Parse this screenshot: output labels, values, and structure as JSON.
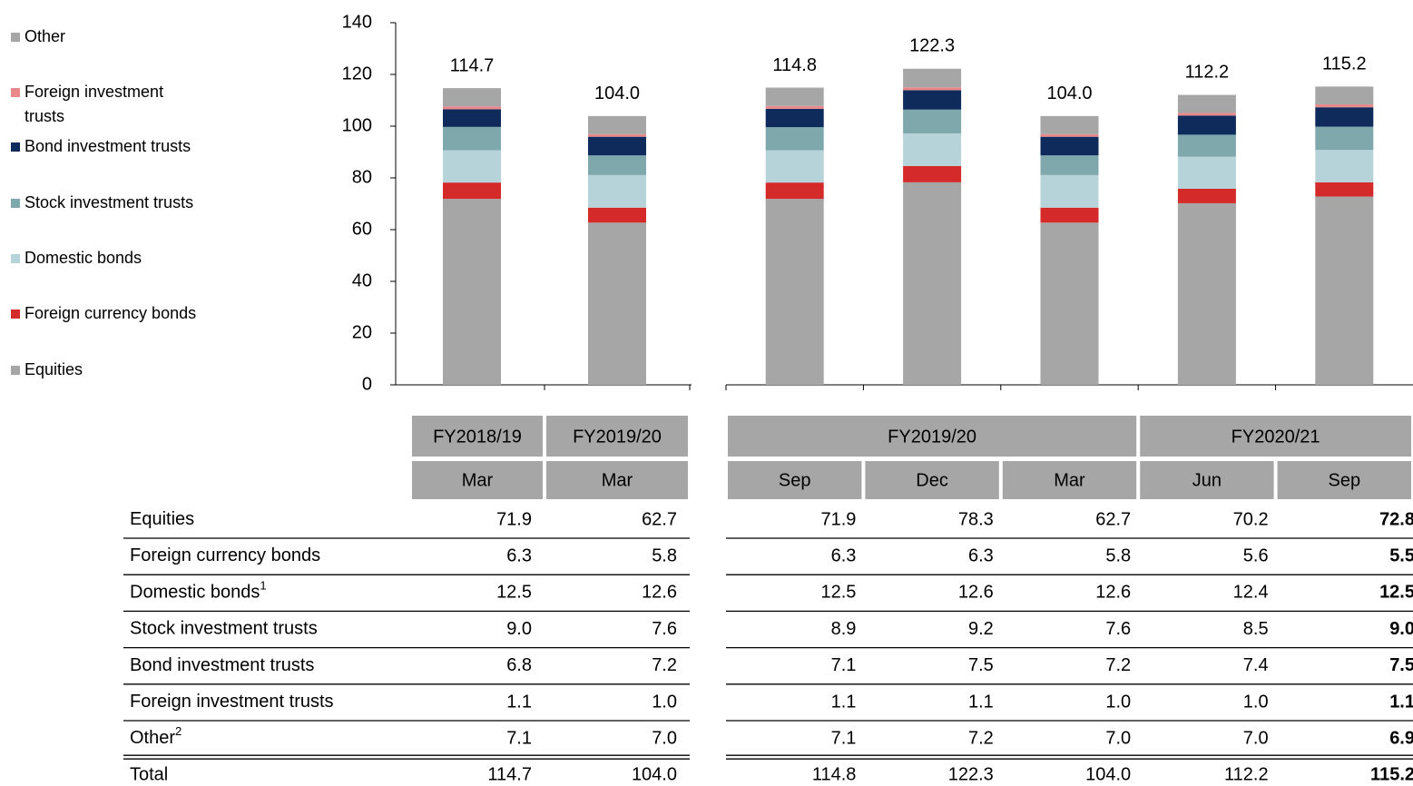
{
  "chart_data": {
    "type": "bar",
    "stacked": true,
    "categories": [
      "Mar",
      "Mar",
      "Sep",
      "Dec",
      "Mar",
      "Jun",
      "Sep"
    ],
    "groups": [
      {
        "label": "FY2018/19",
        "span": 1
      },
      {
        "label": "FY2019/20",
        "span": 1
      },
      {
        "label": "FY2019/20",
        "span": 3
      },
      {
        "label": "FY2020/21",
        "span": 2
      }
    ],
    "ylim": [
      0,
      140
    ],
    "yticks": [
      0,
      20,
      40,
      60,
      80,
      100,
      120,
      140
    ],
    "bold_column": 6,
    "series": [
      {
        "name": "Equities",
        "color": "#a6a6a6",
        "values": [
          71.9,
          62.7,
          71.9,
          78.3,
          62.7,
          70.2,
          72.8
        ]
      },
      {
        "name": "Foreign currency bonds",
        "color": "#d42a2a",
        "values": [
          6.3,
          5.8,
          6.3,
          6.3,
          5.8,
          5.6,
          5.5
        ]
      },
      {
        "name": "Domestic bonds",
        "note": "1",
        "color": "#b7d3da",
        "values": [
          12.5,
          12.6,
          12.5,
          12.6,
          12.6,
          12.4,
          12.5
        ]
      },
      {
        "name": "Stock investment trusts",
        "color": "#7fa8ad",
        "values": [
          9.0,
          7.6,
          8.9,
          9.2,
          7.6,
          8.5,
          9.0
        ],
        "value_labels": [
          "9.0",
          "7.6",
          "8.9",
          "9.2",
          "7.6",
          "8.5",
          "9.0"
        ]
      },
      {
        "name": "Bond investment trusts",
        "color": "#0f2b5b",
        "values": [
          6.8,
          7.2,
          7.1,
          7.5,
          7.2,
          7.4,
          7.5
        ]
      },
      {
        "name": "Foreign investment trusts",
        "color": "#e8888a",
        "values": [
          1.1,
          1.0,
          1.1,
          1.1,
          1.0,
          1.0,
          1.1
        ],
        "value_labels": [
          "1.1",
          "1.0",
          "1.1",
          "1.1",
          "1.0",
          "1.0",
          "1.1"
        ]
      },
      {
        "name": "Other",
        "note": "2",
        "color": "#a6a6a6",
        "values": [
          7.1,
          7.0,
          7.1,
          7.2,
          7.0,
          7.0,
          6.9
        ],
        "value_labels": [
          "7.1",
          "7.0",
          "7.1",
          "7.2",
          "7.0",
          "7.0",
          "6.9"
        ]
      }
    ],
    "totals": {
      "name": "Total",
      "values": [
        114.7,
        104.0,
        114.8,
        122.3,
        104.0,
        112.2,
        115.2
      ],
      "value_labels": [
        "114.7",
        "104.0",
        "114.8",
        "122.3",
        "104.0",
        "112.2",
        "115.2"
      ]
    }
  }
}
